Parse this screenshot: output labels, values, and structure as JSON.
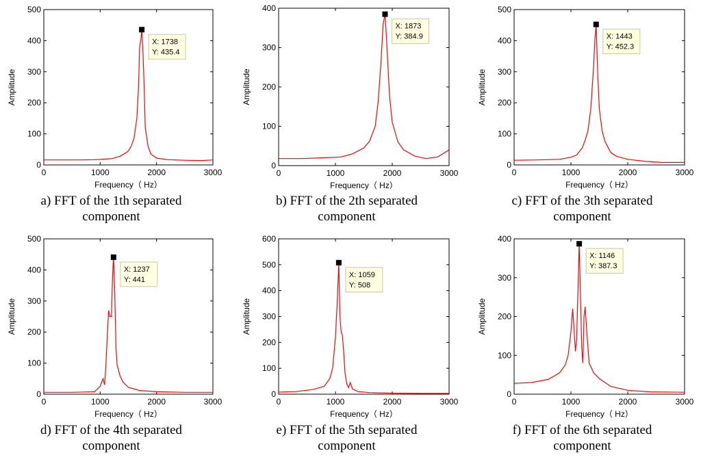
{
  "colors": {
    "curve": "#ff0000",
    "datatip_bg": "#ffffe1",
    "axis": "#000000"
  },
  "chart_data": [
    {
      "type": "line",
      "xlabel": "Frequency（ Hz）",
      "ylabel": "Amplitude",
      "xlim": [
        0,
        3000
      ],
      "ylim": [
        0,
        500
      ],
      "xticks": [
        "0",
        "1000",
        "2000",
        "3000"
      ],
      "yticks": [
        "0",
        "100",
        "200",
        "300",
        "400",
        "500"
      ],
      "caption": [
        "a) FFT of the 1th separated",
        "component"
      ],
      "datatip": {
        "x": 1738,
        "y": 435.4,
        "x_text": "X: 1738",
        "y_text": "Y: 435.4"
      },
      "series": [
        {
          "x": [
            0,
            300,
            600,
            900,
            1200,
            1350,
            1450,
            1500,
            1550,
            1600,
            1650,
            1680,
            1700,
            1720,
            1738,
            1760,
            1780,
            1800,
            1850,
            1900,
            2000,
            2200,
            2500,
            2800,
            3000
          ],
          "values": [
            16,
            16,
            16,
            17,
            20,
            28,
            38,
            45,
            60,
            85,
            150,
            250,
            380,
            400,
            435.4,
            360,
            250,
            120,
            60,
            35,
            22,
            17,
            15,
            14,
            16
          ]
        }
      ]
    },
    {
      "type": "line",
      "xlabel": "Frequency（ Hz）",
      "ylabel": "Amplitude",
      "xlim": [
        0,
        3000
      ],
      "ylim": [
        0,
        400
      ],
      "xticks": [
        "0",
        "1000",
        "2000",
        "3000"
      ],
      "yticks": [
        "0",
        "100",
        "200",
        "300",
        "400"
      ],
      "caption": [
        "b) FFT of the 2th separated",
        "component"
      ],
      "datatip": {
        "x": 1873,
        "y": 384.9,
        "x_text": "X: 1873",
        "y_text": "Y: 384.9"
      },
      "series": [
        {
          "x": [
            0,
            400,
            800,
            1100,
            1300,
            1500,
            1600,
            1700,
            1750,
            1800,
            1840,
            1873,
            1900,
            1950,
            2000,
            2100,
            2200,
            2400,
            2600,
            2800,
            3000
          ],
          "values": [
            18,
            18,
            20,
            22,
            30,
            45,
            62,
            100,
            160,
            260,
            360,
            384.9,
            320,
            180,
            110,
            60,
            40,
            24,
            18,
            22,
            40
          ]
        }
      ]
    },
    {
      "type": "line",
      "xlabel": "Frequency（ Hz）",
      "ylabel": "Amplitude",
      "xlim": [
        0,
        3000
      ],
      "ylim": [
        0,
        500
      ],
      "xticks": [
        "0",
        "1000",
        "2000",
        "3000"
      ],
      "yticks": [
        "0",
        "100",
        "200",
        "300",
        "400",
        "500"
      ],
      "caption": [
        "c) FFT of the 3th separated",
        "component"
      ],
      "datatip": {
        "x": 1443,
        "y": 452.3,
        "x_text": "X: 1443",
        "y_text": "Y: 452.3"
      },
      "series": [
        {
          "x": [
            0,
            400,
            800,
            1000,
            1100,
            1200,
            1250,
            1300,
            1350,
            1400,
            1420,
            1443,
            1470,
            1500,
            1550,
            1600,
            1700,
            1800,
            2000,
            2300,
            2600,
            3000
          ],
          "values": [
            15,
            16,
            18,
            25,
            32,
            55,
            80,
            110,
            180,
            320,
            400,
            452.3,
            300,
            180,
            110,
            75,
            40,
            28,
            18,
            12,
            8,
            8
          ]
        }
      ]
    },
    {
      "type": "line",
      "xlabel": "Frequency（ Hz）",
      "ylabel": "Amplitude",
      "xlim": [
        0,
        3000
      ],
      "ylim": [
        0,
        500
      ],
      "xticks": [
        "0",
        "1000",
        "2000",
        "3000"
      ],
      "yticks": [
        "0",
        "100",
        "200",
        "300",
        "400",
        "500"
      ],
      "caption": [
        "d) FFT of the 4th separated",
        "component"
      ],
      "datatip": {
        "x": 1237,
        "y": 441,
        "x_text": "X: 1237",
        "y_text": "Y: 441"
      },
      "series": [
        {
          "x": [
            0,
            500,
            900,
            1000,
            1050,
            1080,
            1100,
            1130,
            1150,
            1170,
            1200,
            1220,
            1237,
            1260,
            1280,
            1300,
            1350,
            1400,
            1500,
            1700,
            2000,
            2500,
            3000
          ],
          "values": [
            6,
            6,
            8,
            25,
            50,
            30,
            90,
            200,
            270,
            250,
            250,
            380,
            441,
            320,
            150,
            95,
            60,
            40,
            22,
            12,
            8,
            6,
            6
          ]
        }
      ]
    },
    {
      "type": "line",
      "xlabel": "Frequency（ Hz）",
      "ylabel": "Amplitude",
      "xlim": [
        0,
        3000
      ],
      "ylim": [
        0,
        600
      ],
      "xticks": [
        "0",
        "1000",
        "2000",
        "3000"
      ],
      "yticks": [
        "0",
        "100",
        "200",
        "300",
        "400",
        "500",
        "600"
      ],
      "caption": [
        "e) FFT of the 5th separated",
        "component"
      ],
      "datatip": {
        "x": 1059,
        "y": 508,
        "x_text": "X: 1059",
        "y_text": "Y: 508"
      },
      "series": [
        {
          "x": [
            0,
            300,
            600,
            800,
            900,
            950,
            1000,
            1030,
            1059,
            1080,
            1100,
            1120,
            1140,
            1170,
            1200,
            1230,
            1260,
            1300,
            1400,
            1600,
            2000,
            2500,
            3000
          ],
          "values": [
            8,
            10,
            18,
            30,
            60,
            100,
            220,
            350,
            508,
            300,
            240,
            230,
            180,
            80,
            40,
            25,
            45,
            20,
            10,
            6,
            4,
            3,
            3
          ]
        }
      ]
    },
    {
      "type": "line",
      "xlabel": "Frequency（ Hz）",
      "ylabel": "Amplitude",
      "xlim": [
        0,
        3000
      ],
      "ylim": [
        0,
        400
      ],
      "xticks": [
        "0",
        "1000",
        "2000",
        "3000"
      ],
      "yticks": [
        "0",
        "100",
        "200",
        "300",
        "400"
      ],
      "caption": [
        "f) FFT of the 6th separated",
        "component"
      ],
      "datatip": {
        "x": 1146,
        "y": 387.3,
        "x_text": "X: 1146",
        "y_text": "Y: 387.3"
      },
      "series": [
        {
          "x": [
            0,
            300,
            600,
            800,
            900,
            950,
            1000,
            1030,
            1050,
            1080,
            1100,
            1120,
            1146,
            1170,
            1190,
            1210,
            1230,
            1250,
            1280,
            1320,
            1400,
            1500,
            1700,
            2000,
            2400,
            3000
          ],
          "values": [
            28,
            30,
            38,
            55,
            75,
            100,
            160,
            220,
            180,
            110,
            140,
            250,
            387.3,
            240,
            120,
            80,
            200,
            225,
            160,
            80,
            55,
            40,
            20,
            10,
            6,
            5
          ]
        }
      ]
    }
  ]
}
